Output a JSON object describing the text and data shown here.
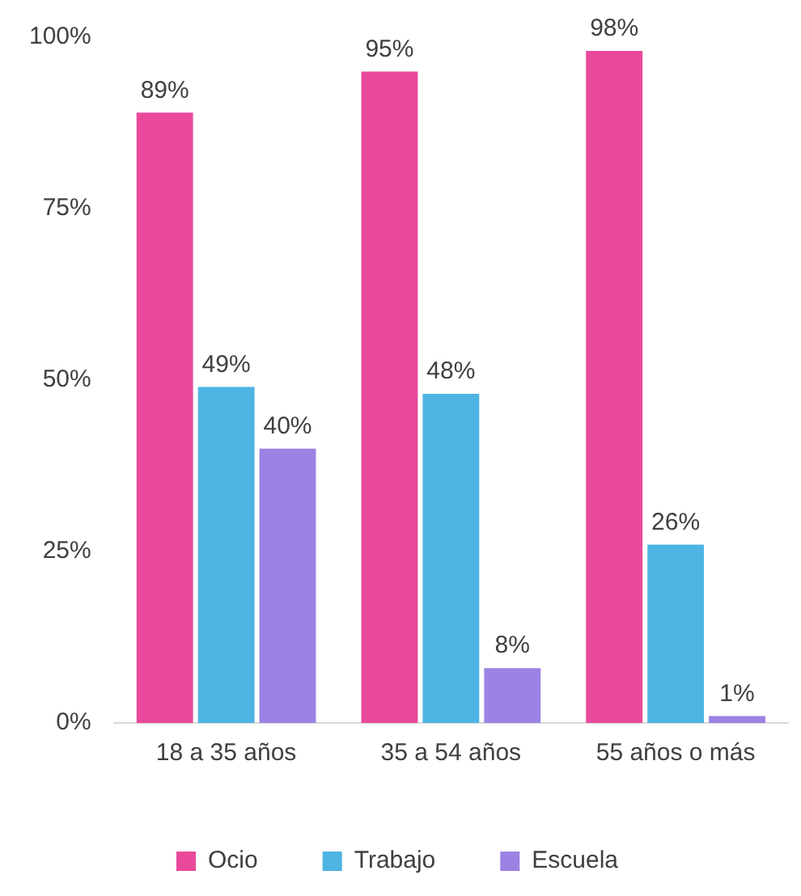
{
  "chart_data": {
    "type": "bar",
    "categories": [
      "18 a 35 años",
      "35 a 54 años",
      "55 años o más"
    ],
    "series": [
      {
        "name": "Ocio",
        "color": "#e8499b",
        "values": [
          89,
          95,
          98
        ],
        "value_labels": [
          "89%",
          "95%",
          "98%"
        ]
      },
      {
        "name": "Trabajo",
        "color": "#4db4e3",
        "values": [
          49,
          48,
          26
        ],
        "value_labels": [
          "49%",
          "48%",
          "26%"
        ]
      },
      {
        "name": "Escuela",
        "color": "#9c82e3",
        "values": [
          40,
          8,
          1
        ],
        "value_labels": [
          "40%",
          "8%",
          "1%"
        ]
      }
    ],
    "ylim": [
      0,
      100
    ],
    "yticks": [
      {
        "value": 0,
        "label": "0%"
      },
      {
        "value": 25,
        "label": "25%"
      },
      {
        "value": 50,
        "label": "50%"
      },
      {
        "value": 75,
        "label": "75%"
      },
      {
        "value": 100,
        "label": "100%"
      }
    ],
    "grid": false,
    "legend": "bottom"
  }
}
